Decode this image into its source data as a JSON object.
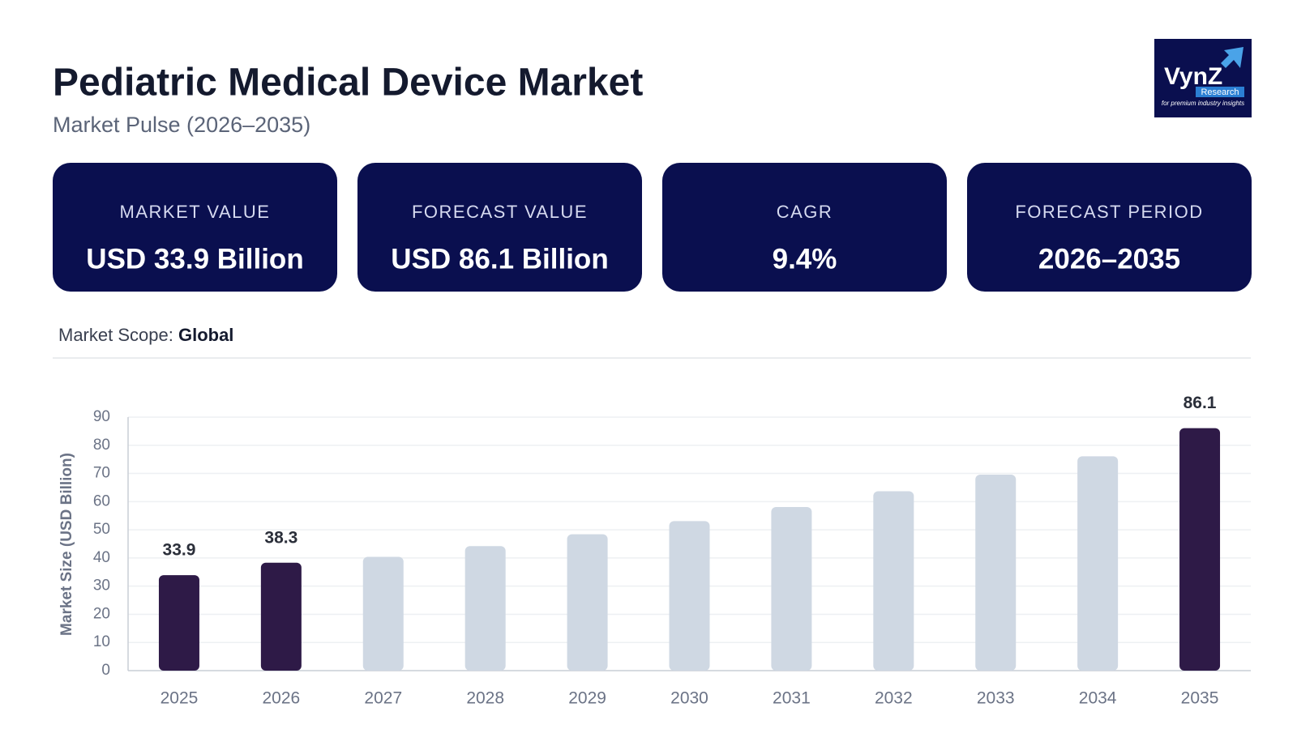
{
  "header": {
    "title": "Pediatric Medical Device Market",
    "subtitle": "Market Pulse (2026–2035)"
  },
  "logo": {
    "brand": "VynZ",
    "sub": "Research",
    "tagline": "for premium industry insights"
  },
  "cards": [
    {
      "label": "MARKET VALUE",
      "value": "USD 33.9 Billion"
    },
    {
      "label": "FORECAST VALUE",
      "value": "USD 86.1 Billion"
    },
    {
      "label": "CAGR",
      "value": "9.4%"
    },
    {
      "label": "FORECAST PERIOD",
      "value": "2026–2035"
    }
  ],
  "scope": {
    "label": "Market Scope:",
    "value": "Global"
  },
  "chart_data": {
    "type": "bar",
    "y_label": "Market Size (USD Billion)",
    "categories": [
      "2025",
      "2026",
      "2027",
      "2028",
      "2029",
      "2030",
      "2031",
      "2032",
      "2033",
      "2034",
      "2035"
    ],
    "values": [
      33.9,
      38.3,
      40.4,
      44.2,
      48.4,
      53.1,
      58.1,
      63.7,
      69.6,
      76.1,
      86.1
    ],
    "value_labels": [
      "33.9",
      "38.3",
      null,
      null,
      null,
      null,
      null,
      null,
      null,
      null,
      "86.1"
    ],
    "colors": [
      "#2e1a47",
      "#2e1a47",
      "#cfd8e3",
      "#cfd8e3",
      "#cfd8e3",
      "#cfd8e3",
      "#cfd8e3",
      "#cfd8e3",
      "#cfd8e3",
      "#cfd8e3",
      "#2e1a47"
    ],
    "ylim": [
      0,
      90
    ],
    "yticks": [
      0,
      10,
      20,
      30,
      40,
      50,
      60,
      70,
      80,
      90
    ],
    "grid": true
  }
}
